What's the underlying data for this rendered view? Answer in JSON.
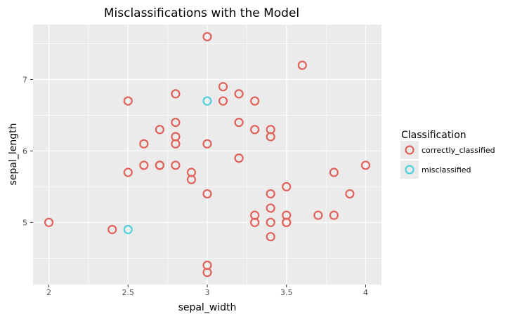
{
  "chart_data": {
    "type": "scatter",
    "title": "Misclassifications with the Model",
    "xlabel": "sepal_width",
    "ylabel": "sepal_length",
    "xlim": [
      1.9,
      4.1
    ],
    "ylim": [
      4.13,
      7.77
    ],
    "x_ticks": [
      2,
      2.5,
      3,
      3.5,
      4
    ],
    "x_tick_labels": [
      "2",
      "2.5",
      "3",
      "3.5",
      "4"
    ],
    "y_ticks": [
      5,
      6,
      7
    ],
    "y_tick_labels": [
      "5",
      "6",
      "7"
    ],
    "grid": true,
    "legend_position": "right",
    "legend_title": "Classification",
    "series": [
      {
        "name": "correctly_classified",
        "color": "#e0625a",
        "x": [
          3.0,
          3.6,
          3.1,
          2.8,
          3.2,
          2.5,
          3.1,
          3.3,
          2.8,
          3.2,
          2.7,
          3.3,
          3.4,
          2.8,
          3.4,
          2.6,
          2.8,
          3.0,
          3.2,
          2.6,
          2.7,
          2.7,
          2.8,
          4.0,
          2.5,
          3.8,
          2.9,
          2.9,
          3.5,
          3.0,
          3.4,
          3.9,
          3.4,
          3.3,
          3.5,
          3.7,
          3.8,
          2.0,
          3.3,
          3.4,
          3.5,
          3.5,
          2.4,
          3.4,
          3.0,
          3.0
        ],
        "y": [
          7.6,
          7.2,
          6.9,
          6.8,
          6.8,
          6.7,
          6.7,
          6.7,
          6.4,
          6.4,
          6.3,
          6.3,
          6.3,
          6.2,
          6.2,
          6.1,
          6.1,
          6.1,
          5.9,
          5.8,
          5.8,
          5.8,
          5.8,
          5.8,
          5.7,
          5.7,
          5.7,
          5.6,
          5.5,
          5.4,
          5.4,
          5.4,
          5.2,
          5.1,
          5.1,
          5.1,
          5.1,
          5.0,
          5.0,
          5.0,
          5.0,
          5.0,
          4.9,
          4.8,
          4.4,
          4.3
        ]
      },
      {
        "name": "misclassified",
        "color": "#4fd0dc",
        "x": [
          3.0,
          2.5
        ],
        "y": [
          6.7,
          4.9
        ]
      }
    ]
  }
}
